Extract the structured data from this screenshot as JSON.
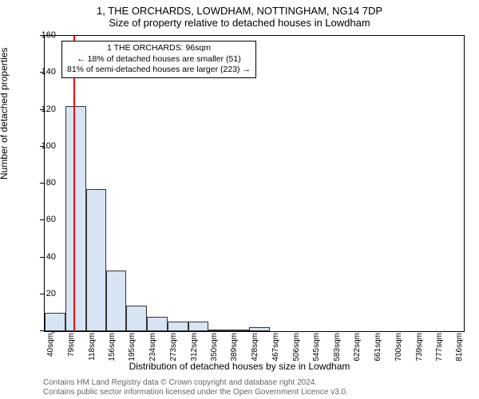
{
  "title_line1": "1, THE ORCHARDS, LOWDHAM, NOTTINGHAM, NG14 7DP",
  "title_line2": "Size of property relative to detached houses in Lowdham",
  "ylabel": "Number of detached properties",
  "xlabel": "Distribution of detached houses by size in Lowdham",
  "footer1": "Contains HM Land Registry data © Crown copyright and database right 2024.",
  "footer2": "Contains public sector information licensed under the Open Government Licence v3.0.",
  "chart": {
    "type": "histogram",
    "background_color": "#ffffff",
    "border_color": "#000000",
    "bar_fill": "#d7e4f4",
    "bar_stroke": "#333333",
    "marker_color": "#ff0000",
    "xlim": [
      40,
      835
    ],
    "ylim": [
      0,
      160
    ],
    "ytick_step": 20,
    "yticks": [
      0,
      20,
      40,
      60,
      80,
      100,
      120,
      140,
      160
    ],
    "xticks": [
      40,
      79,
      118,
      156,
      195,
      234,
      273,
      312,
      350,
      389,
      428,
      467,
      506,
      545,
      583,
      622,
      661,
      700,
      739,
      777,
      816
    ],
    "xtick_unit": "sqm",
    "bars": [
      {
        "x0": 40,
        "x1": 79,
        "y": 10
      },
      {
        "x0": 79,
        "x1": 118,
        "y": 122
      },
      {
        "x0": 118,
        "x1": 156,
        "y": 77
      },
      {
        "x0": 156,
        "x1": 195,
        "y": 33
      },
      {
        "x0": 195,
        "x1": 234,
        "y": 14
      },
      {
        "x0": 234,
        "x1": 273,
        "y": 8
      },
      {
        "x0": 273,
        "x1": 312,
        "y": 5
      },
      {
        "x0": 312,
        "x1": 350,
        "y": 5
      },
      {
        "x0": 350,
        "x1": 389,
        "y": 1
      },
      {
        "x0": 389,
        "x1": 428,
        "y": 1
      },
      {
        "x0": 428,
        "x1": 467,
        "y": 2
      }
    ],
    "marker_x": 96,
    "annotation": {
      "line1": "1 THE ORCHARDS: 96sqm",
      "line2": "← 18% of detached houses are smaller (51)",
      "line3": "81% of semi-detached houses are larger (223) →"
    }
  }
}
